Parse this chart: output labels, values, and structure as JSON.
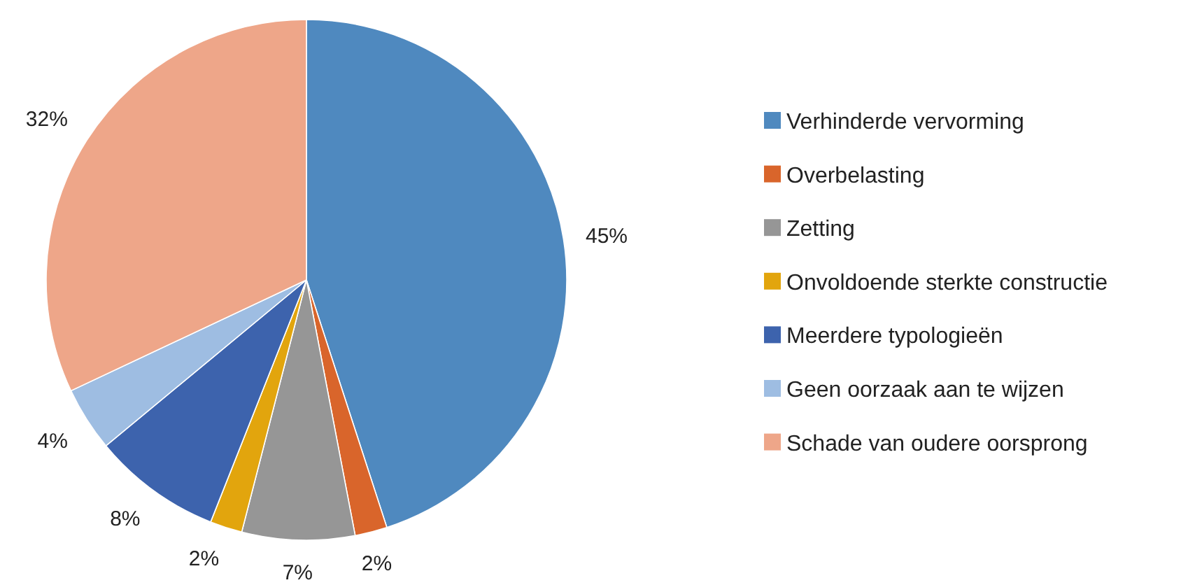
{
  "chart_data": {
    "type": "pie",
    "categories": [
      "Verhinderde vervorming",
      "Overbelasting",
      "Zetting",
      "Onvoldoende sterkte constructie",
      "Meerdere typologieën",
      "Geen oorzaak aan te wijzen",
      "Schade van oudere oorsprong"
    ],
    "values": [
      45,
      2,
      7,
      2,
      8,
      4,
      32
    ],
    "colors": [
      "#4f89bf",
      "#d9652b",
      "#969696",
      "#e2a50d",
      "#3d63ad",
      "#9ebde2",
      "#eea689"
    ],
    "value_labels": [
      "45%",
      "2%",
      "7%",
      "2%",
      "8%",
      "4%",
      "32%"
    ],
    "legend": "right"
  }
}
